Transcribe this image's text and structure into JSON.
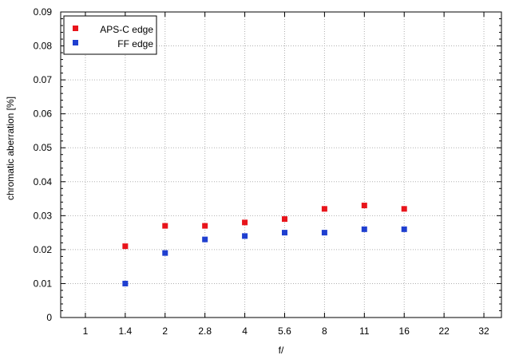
{
  "chart_data": {
    "type": "scatter",
    "xlabel": "f/",
    "ylabel": "chromatic aberration [%]",
    "categories": [
      "1",
      "1.4",
      "2",
      "2.8",
      "4",
      "5.6",
      "8",
      "11",
      "16",
      "22",
      "32"
    ],
    "ylim": [
      0,
      0.09
    ],
    "yticks": [
      "0",
      "0.01",
      "0.02",
      "0.03",
      "0.04",
      "0.05",
      "0.06",
      "0.07",
      "0.08",
      "0.09"
    ],
    "grid": true,
    "legend_position": "top-left",
    "series": [
      {
        "name": "APS-C edge",
        "color": "#e8141b",
        "marker": "square",
        "points": [
          {
            "x": "1.4",
            "y": 0.021
          },
          {
            "x": "2",
            "y": 0.027
          },
          {
            "x": "2.8",
            "y": 0.027
          },
          {
            "x": "4",
            "y": 0.028
          },
          {
            "x": "5.6",
            "y": 0.029
          },
          {
            "x": "8",
            "y": 0.032
          },
          {
            "x": "11",
            "y": 0.033
          },
          {
            "x": "16",
            "y": 0.032
          }
        ]
      },
      {
        "name": "FF edge",
        "color": "#1f3fd0",
        "marker": "square",
        "points": [
          {
            "x": "1.4",
            "y": 0.01
          },
          {
            "x": "2",
            "y": 0.019
          },
          {
            "x": "2.8",
            "y": 0.023
          },
          {
            "x": "4",
            "y": 0.024
          },
          {
            "x": "5.6",
            "y": 0.025
          },
          {
            "x": "8",
            "y": 0.025
          },
          {
            "x": "11",
            "y": 0.026
          },
          {
            "x": "16",
            "y": 0.026
          }
        ]
      }
    ]
  }
}
